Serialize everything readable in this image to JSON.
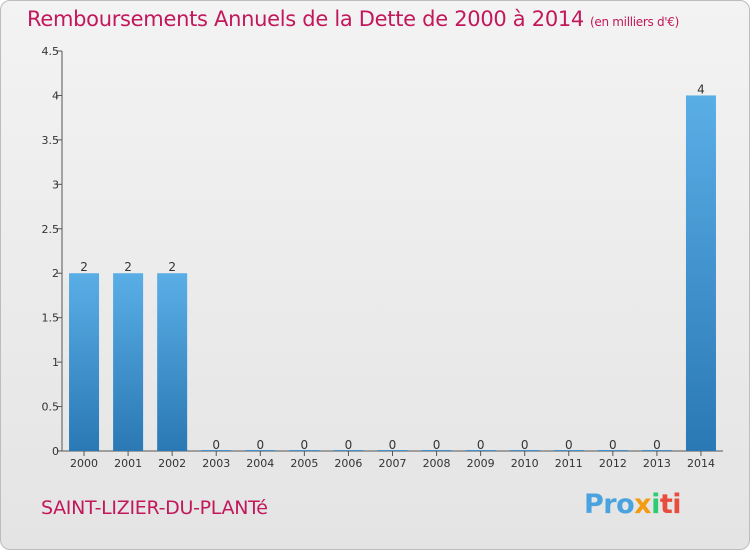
{
  "header": {
    "title": "Remboursements Annuels de la Dette de 2000 à 2014",
    "unit": "(en milliers d'€)"
  },
  "footer": {
    "commune": "SAINT-LIZIER-DU-PLANTé",
    "logo": [
      "Pro",
      "x",
      "i",
      "ti"
    ]
  },
  "chart_data": {
    "type": "bar",
    "categories": [
      "2000",
      "2001",
      "2002",
      "2003",
      "2004",
      "2005",
      "2006",
      "2007",
      "2008",
      "2009",
      "2010",
      "2011",
      "2012",
      "2013",
      "2014"
    ],
    "values": [
      2,
      2,
      2,
      0,
      0,
      0,
      0,
      0,
      0,
      0,
      0,
      0,
      0,
      0,
      4
    ],
    "value_labels": [
      "2",
      "2",
      "2",
      "0",
      "0",
      "0",
      "0",
      "0",
      "0",
      "0",
      "0",
      "0",
      "0",
      "0",
      "4"
    ],
    "y_ticks": [
      0,
      0.5,
      1,
      1.5,
      2,
      2.5,
      3,
      3.5,
      4,
      4.5
    ],
    "y_tick_labels": [
      "0",
      "0.5",
      "1",
      "1.5",
      "2",
      "2.5",
      "3",
      "3.5",
      "4",
      "4.5"
    ],
    "ylim": [
      0,
      4.5
    ],
    "bar_color": "#4aa3df",
    "grid": false
  }
}
